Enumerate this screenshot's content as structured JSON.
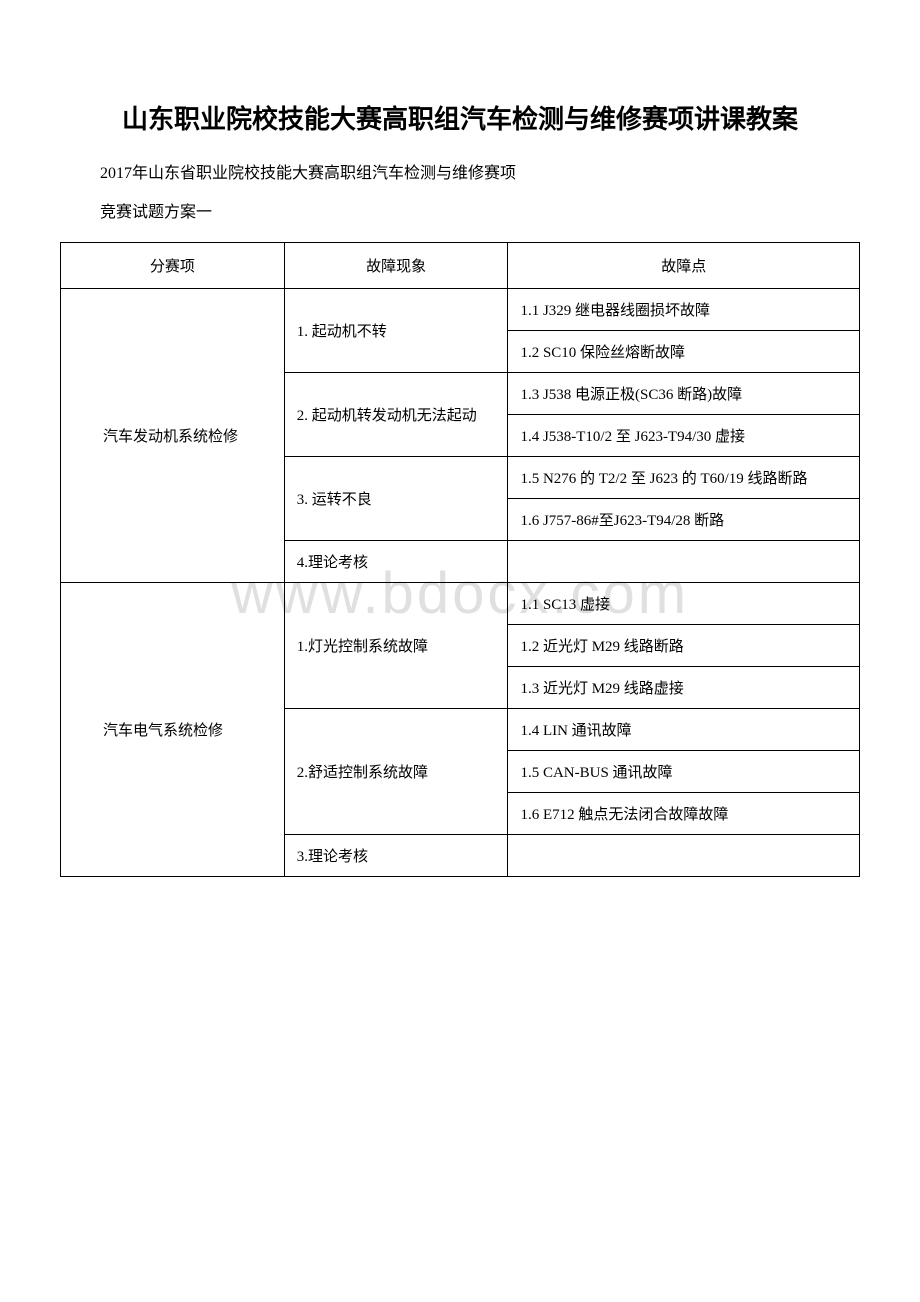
{
  "document": {
    "title": "山东职业院校技能大赛高职组汽车检测与维修赛项讲课教案",
    "subtitle": "2017年山东省职业院校技能大赛高职组汽车检测与维修赛项",
    "plan_label": "竞赛试题方案一",
    "watermark": "www.bdocx.com"
  },
  "table": {
    "headers": {
      "category": "分赛项",
      "symptom": "故障现象",
      "fault": "故障点"
    },
    "sections": [
      {
        "category": "汽车发动机系统检修",
        "rows": [
          {
            "symptom": "1. 起动机不转",
            "symptom_rowspan": 2,
            "fault": "1.1 J329 继电器线圈损坏故障"
          },
          {
            "fault": "1.2 SC10 保险丝熔断故障"
          },
          {
            "symptom": "2. 起动机转发动机无法起动",
            "symptom_rowspan": 2,
            "fault": "1.3 J538 电源正极(SC36 断路)故障"
          },
          {
            "fault": "1.4 J538-T10/2 至 J623-T94/30 虚接"
          },
          {
            "symptom": "3. 运转不良",
            "symptom_rowspan": 2,
            "fault": "1.5 N276 的 T2/2 至 J623 的 T60/19 线路断路"
          },
          {
            "fault": "1.6 J757-86#至J623-T94/28 断路"
          },
          {
            "symptom": "4.理论考核",
            "symptom_rowspan": 1,
            "fault": ""
          }
        ]
      },
      {
        "category": "汽车电气系统检修",
        "rows": [
          {
            "symptom": "1.灯光控制系统故障",
            "symptom_rowspan": 3,
            "fault": "1.1 SC13 虚接"
          },
          {
            "fault": "1.2 近光灯 M29 线路断路"
          },
          {
            "fault": "1.3 近光灯 M29 线路虚接"
          },
          {
            "symptom": "2.舒适控制系统故障",
            "symptom_rowspan": 3,
            "fault": "1.4 LIN 通讯故障"
          },
          {
            "fault": "1.5 CAN-BUS 通讯故障"
          },
          {
            "fault": "1.6 E712 触点无法闭合故障故障"
          },
          {
            "symptom": "3.理论考核",
            "symptom_rowspan": 1,
            "fault": ""
          }
        ]
      }
    ]
  }
}
